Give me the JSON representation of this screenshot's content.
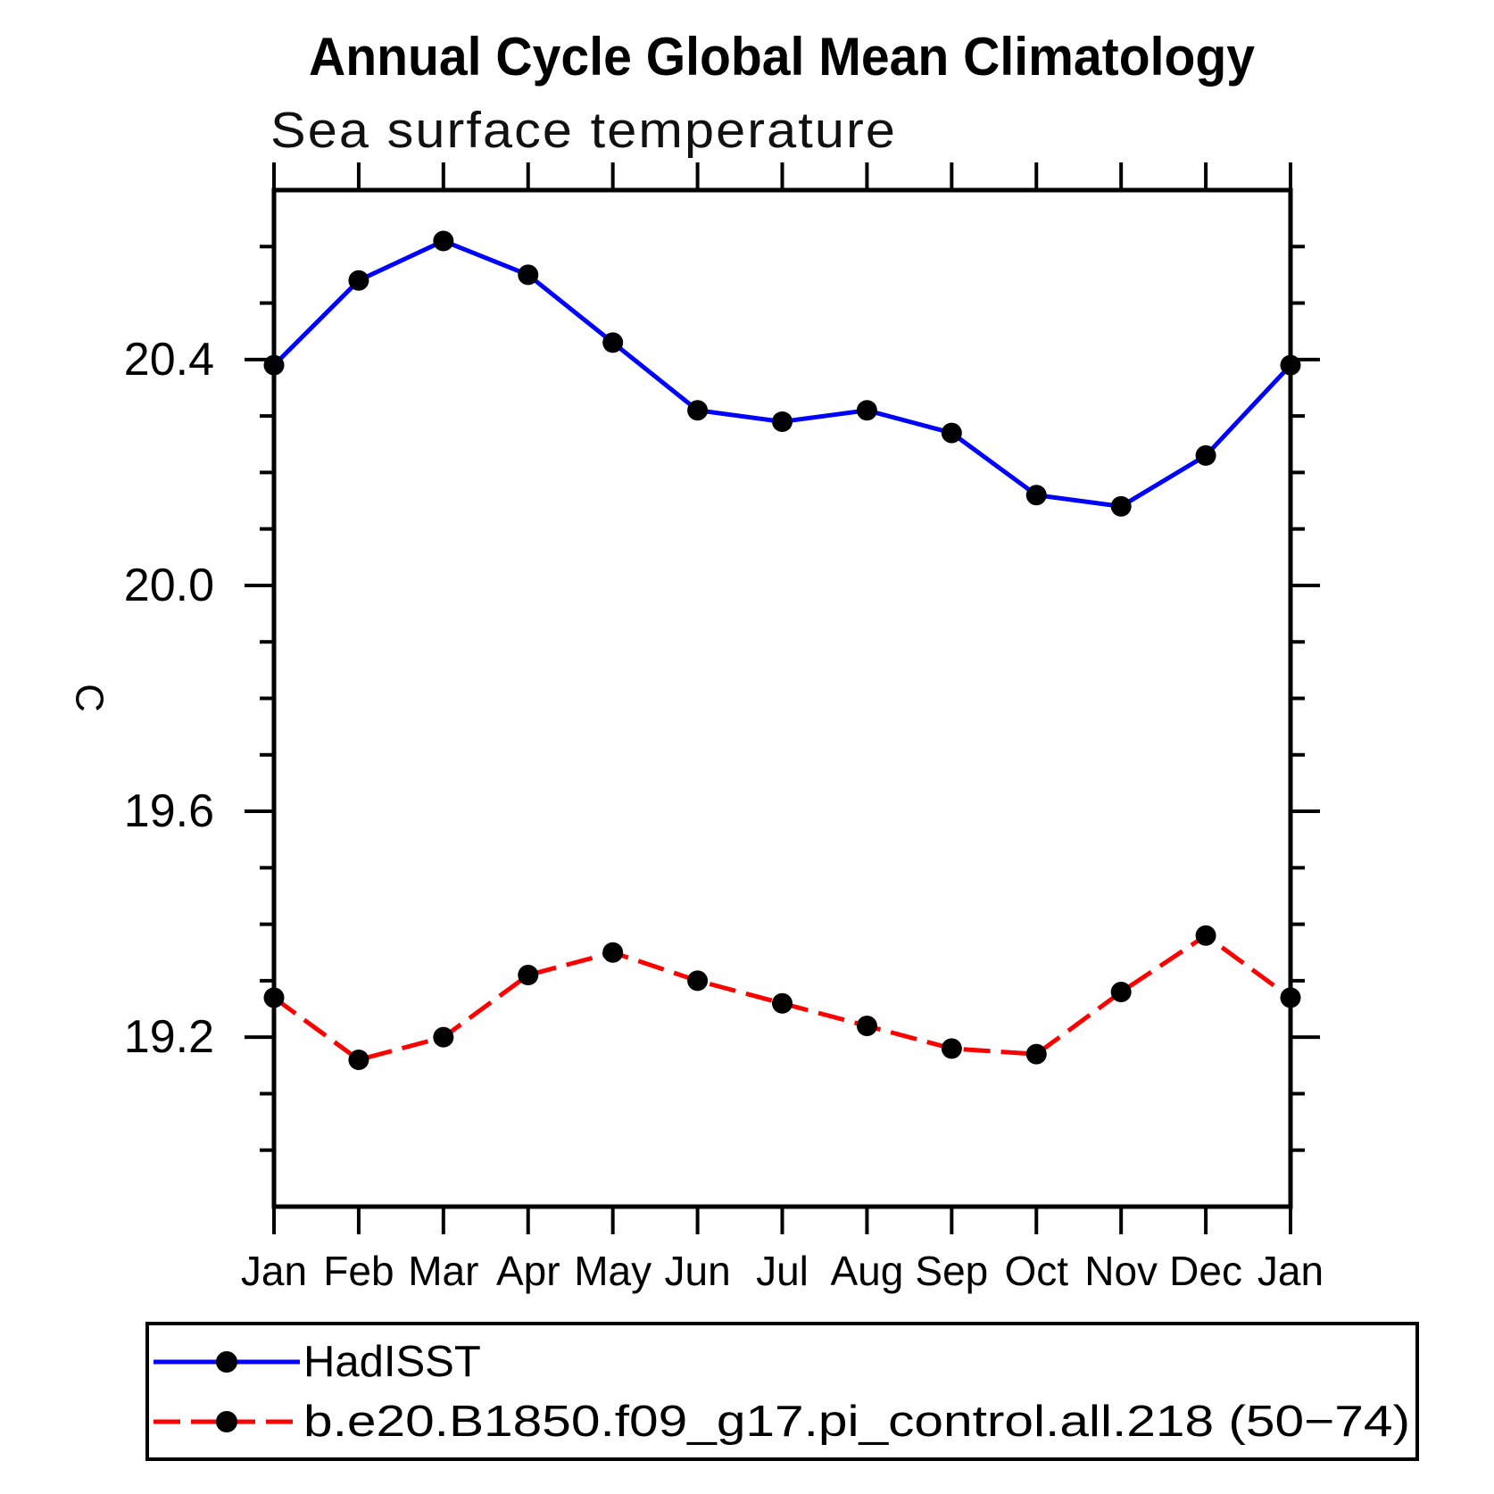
{
  "page": {
    "background": "#ffffff"
  },
  "chart_data": {
    "type": "line",
    "title": "Annual Cycle Global Mean Climatology",
    "subtitle": "Sea surface temperature",
    "ylabel": "C",
    "xlabel": "",
    "x_categories": [
      "Jan",
      "Feb",
      "Mar",
      "Apr",
      "May",
      "Jun",
      "Jul",
      "Aug",
      "Sep",
      "Oct",
      "Nov",
      "Dec",
      "Jan"
    ],
    "ylim": [
      18.9,
      20.7
    ],
    "y_major_ticks": [
      19.2,
      19.6,
      20.0,
      20.4
    ],
    "y_minor_step": 0.1,
    "grid": false,
    "legend_position": "bottom-left-box",
    "axis_color": "#000000",
    "marker_color": "#000000",
    "series": [
      {
        "name": "HadISST",
        "color": "#0000ff",
        "style": "solid",
        "marker": "circle",
        "values": [
          20.39,
          20.54,
          20.61,
          20.55,
          20.43,
          20.31,
          20.29,
          20.31,
          20.27,
          20.16,
          20.14,
          20.23,
          20.39
        ]
      },
      {
        "name": "b.e20.B1850.f09_g17.pi_control.all.218 (50−74)",
        "color": "#ff0000",
        "style": "dashed",
        "marker": "circle",
        "values": [
          19.27,
          19.16,
          19.2,
          19.31,
          19.35,
          19.3,
          19.26,
          19.22,
          19.18,
          19.17,
          19.28,
          19.38,
          19.27
        ]
      }
    ]
  }
}
